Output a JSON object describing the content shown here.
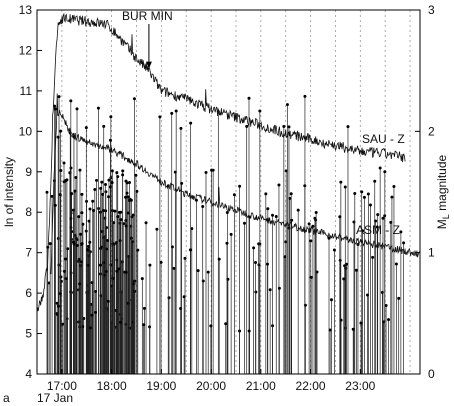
{
  "chart_data": {
    "type": "line",
    "panel_label": "a",
    "date_label": "17 Jan",
    "xlabel": "",
    "x_ticks": [
      "17:00",
      "18:00",
      "19:00",
      "20:00",
      "21:00",
      "22:00",
      "23:00"
    ],
    "xlim_hours": [
      16.5,
      24.2
    ],
    "dashed_verticals_every_hours": 0.5,
    "left_axis": {
      "label": "ln of intensity",
      "ylim": [
        4,
        13
      ],
      "ticks": [
        4,
        5,
        6,
        7,
        8,
        9,
        10,
        11,
        12,
        13
      ]
    },
    "right_axis": {
      "label_main": "M",
      "label_sub": "L",
      "label_rest": " magnitude",
      "ylim": [
        0,
        3
      ],
      "ticks": [
        0,
        1,
        2,
        3
      ]
    },
    "annotation": {
      "text": "BUR MIN",
      "arrow_to_hour": 18.75,
      "arrow_to_value": 11.55
    },
    "series": [
      {
        "name": "SAU - Z",
        "axis": "left",
        "noise": 0.13,
        "points": [
          [
            16.5,
            5.6
          ],
          [
            16.62,
            5.9
          ],
          [
            16.72,
            6.8
          ],
          [
            16.8,
            9.5
          ],
          [
            16.86,
            11.5
          ],
          [
            16.92,
            12.6
          ],
          [
            17.0,
            12.8
          ],
          [
            17.3,
            12.75
          ],
          [
            17.6,
            12.7
          ],
          [
            17.9,
            12.65
          ],
          [
            18.1,
            12.4
          ],
          [
            18.3,
            12.1
          ],
          [
            18.5,
            11.8
          ],
          [
            18.75,
            11.5
          ],
          [
            19.0,
            11.0
          ],
          [
            19.5,
            10.8
          ],
          [
            20.0,
            10.55
          ],
          [
            20.5,
            10.35
          ],
          [
            21.0,
            10.15
          ],
          [
            21.5,
            9.95
          ],
          [
            22.0,
            9.8
          ],
          [
            22.5,
            9.65
          ],
          [
            23.0,
            9.5
          ],
          [
            23.5,
            9.45
          ],
          [
            23.9,
            9.35
          ]
        ]
      },
      {
        "name": "ASM - Z",
        "axis": "left",
        "noise": 0.09,
        "points": [
          [
            16.78,
            6.4
          ],
          [
            16.84,
            8.8
          ],
          [
            16.9,
            10.4
          ],
          [
            16.96,
            10.5
          ],
          [
            17.2,
            9.9
          ],
          [
            17.6,
            9.7
          ],
          [
            18.0,
            9.55
          ],
          [
            18.5,
            9.2
          ],
          [
            19.0,
            8.75
          ],
          [
            19.5,
            8.45
          ],
          [
            20.0,
            8.25
          ],
          [
            20.5,
            8.05
          ],
          [
            21.0,
            7.85
          ],
          [
            21.5,
            7.7
          ],
          [
            22.0,
            7.55
          ],
          [
            22.5,
            7.4
          ],
          [
            23.0,
            7.25
          ],
          [
            23.5,
            7.15
          ],
          [
            24.2,
            6.95
          ]
        ]
      }
    ],
    "events": {
      "axis": "right",
      "type": "stem",
      "name": "M_L magnitude",
      "generated_count": 340,
      "start_hour": 16.6,
      "end_hour": 23.9,
      "dense_until_hour": 18.5
    }
  }
}
